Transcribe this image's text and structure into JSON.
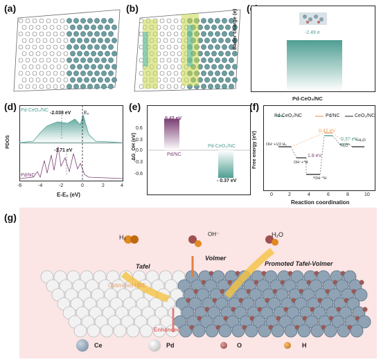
{
  "panels": {
    "a": {
      "label": "(a)"
    },
    "b": {
      "label": "(b)"
    },
    "c": {
      "label": "(c)",
      "ylabel": "Bader charge (e)",
      "value_label": "-2.49 e",
      "xlabel": "Pd-CeO₂/NC"
    },
    "d": {
      "label": "(d)",
      "ylabel": "PDOS",
      "xlabel": "E-Eₒ (eV)",
      "series1": "Pd-CeO₂/NC",
      "series1_center": "-2.038 eV",
      "series2": "Pd/NC",
      "series2_center": "-1.71 eV",
      "fermi": "Eₒ",
      "ticks": [
        "-6",
        "-4",
        "-2",
        "0",
        "2",
        "4"
      ]
    },
    "e": {
      "label": "(e)",
      "ylabel": "ΔG_OH (eV)",
      "ticks": [
        "0.6",
        "0.3",
        "0.0",
        "-0.3",
        "-0.6"
      ],
      "bar1_name": "Pd/NC",
      "bar1_value": "0.42 eV",
      "bar2_name": "Pd-CeO₂/NC",
      "bar2_value": "- 0.37 eV"
    },
    "f": {
      "label": "(f)",
      "ylabel": "Free energy (eV)",
      "xlabel": "Reaction coordination",
      "legend": [
        "Pd-CeO₂/NC",
        "Pd/NC",
        "CeO₂/NC"
      ],
      "yticks": [
        "3",
        "2",
        "1",
        "0",
        "-1",
        "-2",
        "-3"
      ],
      "xticks": [
        "0",
        "2",
        "4",
        "6",
        "8",
        "10"
      ],
      "ann": [
        "OH⁻+1/2 H₂",
        "OH⁻+*H",
        "*OH⁻*H",
        "*H₂O",
        "*+H₂O"
      ],
      "vals": [
        "0.42 eV",
        "1.8 eV",
        "0.37 eV"
      ]
    },
    "g": {
      "label": "(g)",
      "h2": "H₂",
      "oh": "OH⁻",
      "h2o": "H₂O",
      "tafel": "Tafel",
      "volmer": "Volmer",
      "promoted": "Promoted Tafel-Volmer",
      "optimized": "Optimized HBE",
      "enhanced": "Enhanced",
      "legend": [
        "Ce",
        "Pd",
        "O",
        "H"
      ]
    }
  },
  "chart_data": [
    {
      "type": "bar",
      "title": "",
      "ylabel": "Bader charge (e)",
      "categories": [
        "Pd-CeO₂/NC"
      ],
      "values": [
        -2.49
      ]
    },
    {
      "type": "bar",
      "title": "",
      "ylabel": "ΔG_OH (eV)",
      "ylim": [
        -0.6,
        0.6
      ],
      "categories": [
        "Pd/NC",
        "Pd-CeO₂/NC"
      ],
      "values": [
        0.42,
        -0.37
      ]
    },
    {
      "type": "line",
      "title": "",
      "xlabel": "E-Eₒ (eV)",
      "ylabel": "PDOS",
      "xlim": [
        -6,
        4
      ],
      "series": [
        {
          "name": "Pd-CeO₂/NC",
          "d_band_center": -2.038
        },
        {
          "name": "Pd/NC",
          "d_band_center": -1.71
        }
      ]
    },
    {
      "type": "line",
      "title": "",
      "xlabel": "Reaction coordination",
      "ylabel": "Free energy (eV)",
      "xlim": [
        0,
        10
      ],
      "ylim": [
        -3,
        3
      ],
      "series": [
        {
          "name": "Pd-CeO₂/NC"
        },
        {
          "name": "Pd/NC"
        },
        {
          "name": "CeO₂/NC"
        }
      ]
    }
  ],
  "colors": {
    "teal": "#4f9e92",
    "purple": "#7a3f73",
    "orange": "#e8a060",
    "grey": "#444444",
    "pink_bg": "#fbe5e5"
  }
}
